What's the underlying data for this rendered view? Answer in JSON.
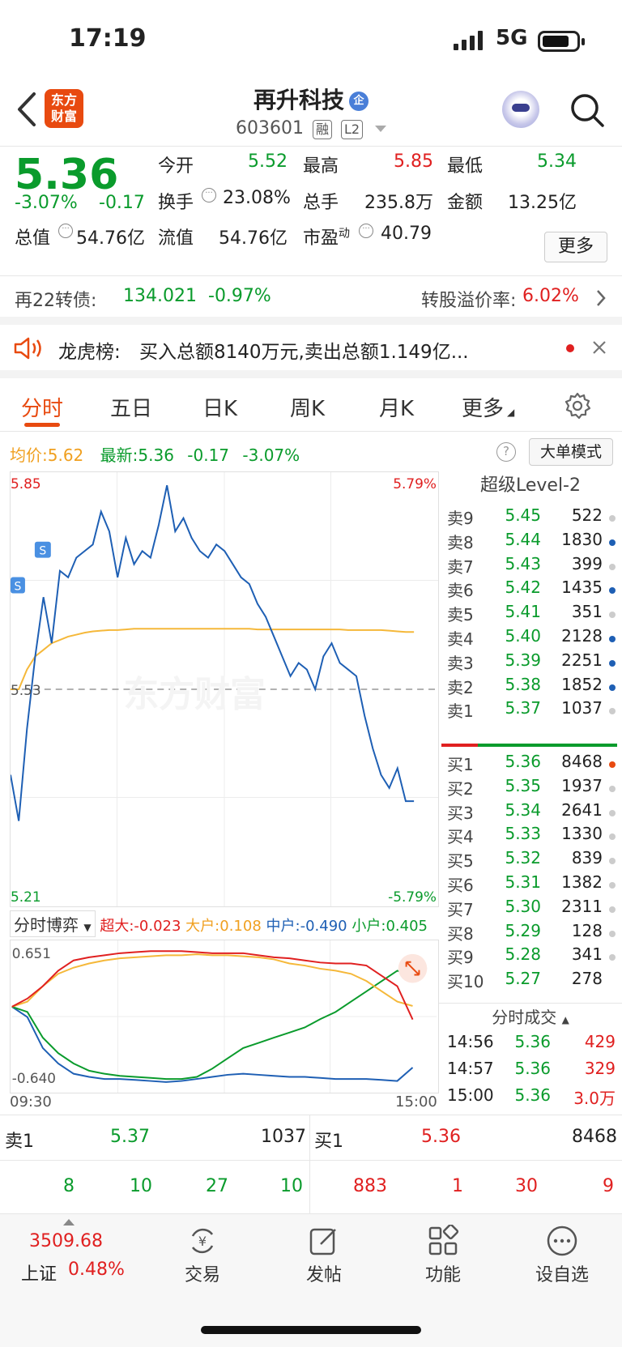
{
  "status_bar": {
    "time": "17:19",
    "network": "5G"
  },
  "header": {
    "title": "再升科技",
    "title_badge": "企",
    "code": "603601",
    "tag1": "融",
    "tag2": "L2",
    "logo_line1": "东方",
    "logo_line2": "财富"
  },
  "quote": {
    "price": "5.36",
    "pct": "-3.07%",
    "chg": "-0.17",
    "open_label": "今开",
    "open": "5.52",
    "high_label": "最高",
    "high": "5.85",
    "low_label": "最低",
    "low": "5.34",
    "turnover_label": "换手",
    "turnover": "23.08%",
    "volume_label": "总手",
    "volume": "235.8万",
    "amount_label": "金额",
    "amount": "13.25亿",
    "mktcap_label": "总值",
    "mktcap": "54.76亿",
    "float_label": "流值",
    "float": "54.76亿",
    "pe_label": "市盈",
    "pe_sup": "动",
    "pe": "40.79",
    "more_label": "更多"
  },
  "bond": {
    "name": "再22转债:",
    "price": "134.021",
    "pct": "-0.97%",
    "premium_label": "转股溢价率:",
    "premium": "6.02%"
  },
  "dragon": {
    "label": "龙虎榜:",
    "text": "买入总额8140万元,卖出总额1.149亿..."
  },
  "tabs": [
    "分时",
    "五日",
    "日K",
    "周K",
    "月K",
    "更多"
  ],
  "chart": {
    "avg_label": "均价:",
    "avg": "5.62",
    "latest_label": "最新:",
    "latest": "5.36",
    "chg": "-0.17",
    "pct": "-3.07%",
    "mode_label": "大单模式",
    "y_top": "5.85",
    "y_top_pct": "5.79%",
    "y_bottom": "5.21",
    "y_bottom_pct": "-5.79%",
    "y_mid": "5.53",
    "s_marker": "S",
    "watermark": "东方财富"
  },
  "chart_data": {
    "type": "line",
    "ylim": [
      5.21,
      5.85
    ],
    "prev_close": 5.53,
    "series": [
      {
        "name": "最新",
        "values": [
          5.4,
          5.33,
          5.47,
          5.58,
          5.67,
          5.6,
          5.71,
          5.7,
          5.73,
          5.74,
          5.75,
          5.8,
          5.77,
          5.7,
          5.76,
          5.72,
          5.74,
          5.73,
          5.78,
          5.84,
          5.77,
          5.79,
          5.76,
          5.74,
          5.73,
          5.75,
          5.74,
          5.72,
          5.7,
          5.69,
          5.66,
          5.64,
          5.61,
          5.58,
          5.55,
          5.57,
          5.56,
          5.53,
          5.58,
          5.6,
          5.57,
          5.56,
          5.55,
          5.49,
          5.44,
          5.4,
          5.38,
          5.41,
          5.36,
          5.36
        ]
      },
      {
        "name": "均价",
        "values": [
          5.53,
          5.53,
          5.56,
          5.58,
          5.59,
          5.6,
          5.605,
          5.61,
          5.613,
          5.616,
          5.618,
          5.619,
          5.62,
          5.62,
          5.621,
          5.622,
          5.622,
          5.622,
          5.622,
          5.622,
          5.622,
          5.622,
          5.622,
          5.622,
          5.622,
          5.622,
          5.622,
          5.622,
          5.622,
          5.622,
          5.621,
          5.621,
          5.621,
          5.621,
          5.621,
          5.621,
          5.621,
          5.621,
          5.621,
          5.621,
          5.621,
          5.62,
          5.62,
          5.62,
          5.62,
          5.62,
          5.619,
          5.618,
          5.617,
          5.617
        ]
      }
    ]
  },
  "order_book": {
    "title": "超级Level-2",
    "asks": [
      {
        "label": "卖9",
        "price": "5.45",
        "vol": "522"
      },
      {
        "label": "卖8",
        "price": "5.44",
        "vol": "1830"
      },
      {
        "label": "卖7",
        "price": "5.43",
        "vol": "399"
      },
      {
        "label": "卖6",
        "price": "5.42",
        "vol": "1435"
      },
      {
        "label": "卖5",
        "price": "5.41",
        "vol": "351"
      },
      {
        "label": "卖4",
        "price": "5.40",
        "vol": "2128"
      },
      {
        "label": "卖3",
        "price": "5.39",
        "vol": "2251"
      },
      {
        "label": "卖2",
        "price": "5.38",
        "vol": "1852"
      },
      {
        "label": "卖1",
        "price": "5.37",
        "vol": "1037"
      }
    ],
    "bids": [
      {
        "label": "买1",
        "price": "5.36",
        "vol": "8468"
      },
      {
        "label": "买2",
        "price": "5.35",
        "vol": "1937"
      },
      {
        "label": "买3",
        "price": "5.34",
        "vol": "2641"
      },
      {
        "label": "买4",
        "price": "5.33",
        "vol": "1330"
      },
      {
        "label": "买5",
        "price": "5.32",
        "vol": "839"
      },
      {
        "label": "买6",
        "price": "5.31",
        "vol": "1382"
      },
      {
        "label": "买7",
        "price": "5.30",
        "vol": "2311"
      },
      {
        "label": "买8",
        "price": "5.29",
        "vol": "128"
      },
      {
        "label": "买9",
        "price": "5.28",
        "vol": "341"
      },
      {
        "label": "买10",
        "price": "5.27",
        "vol": "278"
      }
    ]
  },
  "ticks": {
    "title": "分时成交",
    "rows": [
      {
        "t": "14:56",
        "p": "5.36",
        "v": "429"
      },
      {
        "t": "14:57",
        "p": "5.36",
        "v": "329"
      },
      {
        "t": "15:00",
        "p": "5.36",
        "v": "3.0万"
      }
    ]
  },
  "game": {
    "selector": "分时博弈",
    "super_label": "超大:",
    "super": "-0.023",
    "large_label": "大户:",
    "large": "0.108",
    "mid_label": "中户:",
    "mid": "-0.490",
    "small_label": "小户:",
    "small": "0.405",
    "y_top": "0.651",
    "y_bottom": "-0.640",
    "x_start": "09:30",
    "x_end": "15:00"
  },
  "game_chart_data": {
    "type": "line",
    "ylim": [
      -0.64,
      0.651
    ],
    "series": [
      {
        "name": "超大",
        "values": [
          0.1,
          0.18,
          0.3,
          0.45,
          0.55,
          0.58,
          0.6,
          0.62,
          0.63,
          0.64,
          0.64,
          0.64,
          0.63,
          0.62,
          0.62,
          0.62,
          0.6,
          0.58,
          0.57,
          0.55,
          0.53,
          0.52,
          0.52,
          0.5,
          0.4,
          0.3,
          -0.023
        ]
      },
      {
        "name": "大户",
        "values": [
          0.1,
          0.15,
          0.3,
          0.42,
          0.48,
          0.52,
          0.55,
          0.57,
          0.58,
          0.59,
          0.6,
          0.6,
          0.61,
          0.6,
          0.6,
          0.59,
          0.58,
          0.56,
          0.52,
          0.5,
          0.47,
          0.45,
          0.42,
          0.35,
          0.25,
          0.15,
          0.108
        ]
      },
      {
        "name": "中户",
        "values": [
          0.1,
          0.0,
          -0.3,
          -0.45,
          -0.55,
          -0.58,
          -0.6,
          -0.6,
          -0.61,
          -0.62,
          -0.63,
          -0.62,
          -0.6,
          -0.58,
          -0.56,
          -0.55,
          -0.56,
          -0.57,
          -0.58,
          -0.58,
          -0.59,
          -0.6,
          -0.6,
          -0.6,
          -0.61,
          -0.62,
          -0.49
        ]
      },
      {
        "name": "小户",
        "values": [
          0.1,
          0.05,
          -0.2,
          -0.35,
          -0.45,
          -0.52,
          -0.55,
          -0.57,
          -0.58,
          -0.59,
          -0.6,
          -0.6,
          -0.58,
          -0.5,
          -0.4,
          -0.3,
          -0.25,
          -0.2,
          -0.15,
          -0.1,
          -0.02,
          0.05,
          0.15,
          0.25,
          0.35,
          0.45,
          0.405
        ]
      }
    ]
  },
  "bottom_quote": {
    "ask_label": "卖1",
    "ask_price": "5.37",
    "ask_vol": "1037",
    "bid_label": "买1",
    "bid_price": "5.36",
    "bid_vol": "8468",
    "ask_q": [
      "8",
      "10",
      "27",
      "10"
    ],
    "bid_q": [
      "883",
      "1",
      "30",
      "9"
    ]
  },
  "bottom_bar": {
    "index_value": "3509.68",
    "index_name": "上证",
    "index_pct": "0.48%",
    "items": [
      "交易",
      "发帖",
      "功能",
      "设自选"
    ]
  },
  "colors": {
    "up": "#e02020",
    "down": "#0a9b2c",
    "accent": "#e84a10",
    "avg": "#f5b83a",
    "price_line": "#1e5fb4"
  }
}
